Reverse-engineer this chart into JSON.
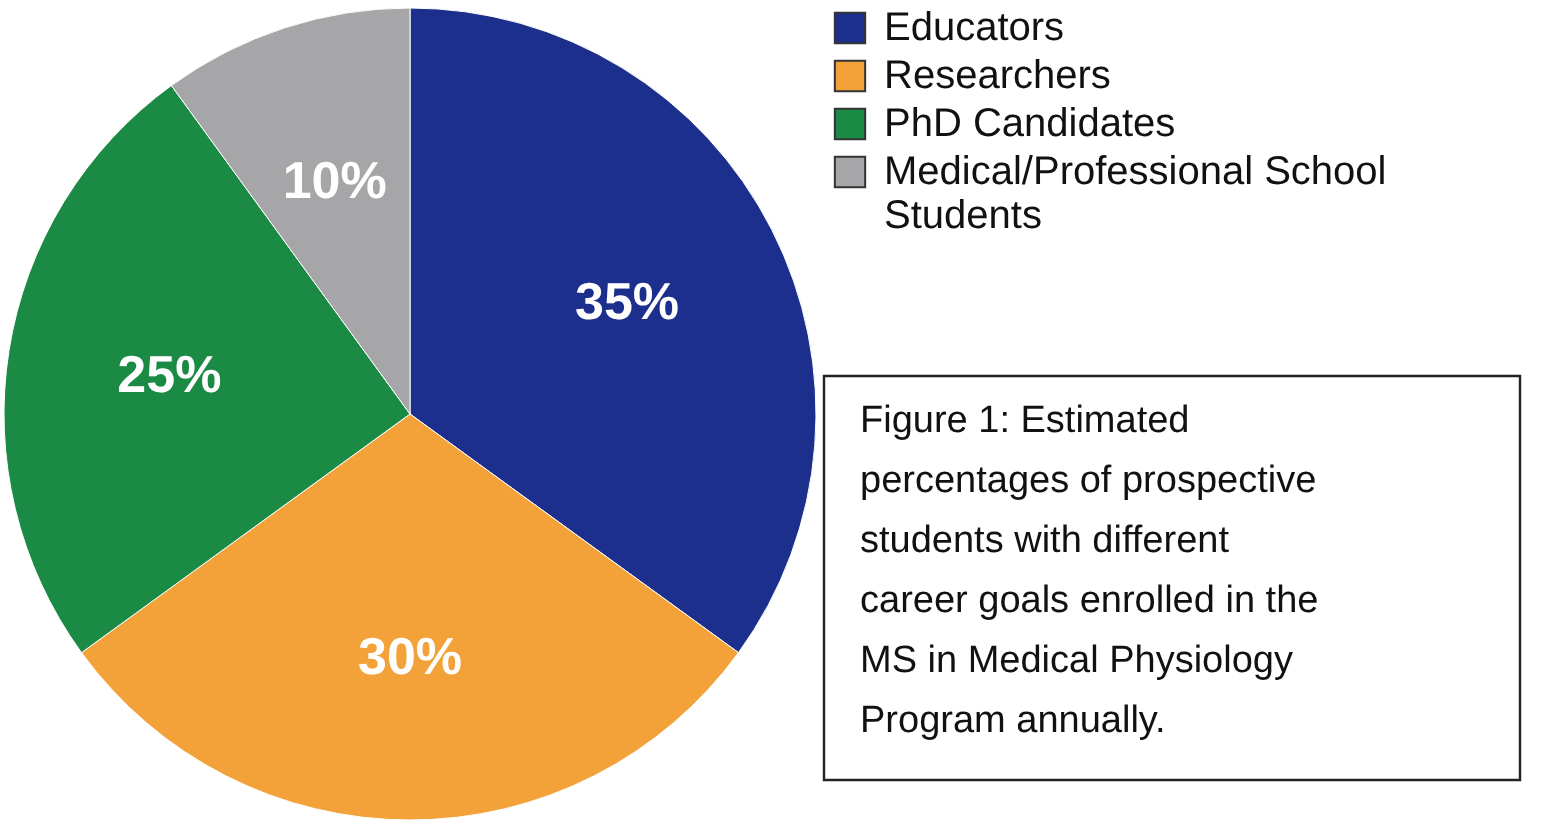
{
  "chart_data": {
    "type": "pie",
    "categories": [
      "Educators",
      "Researchers",
      "PhD Candidates",
      "Medical/Professional School Students"
    ],
    "values": [
      35,
      30,
      25,
      10
    ],
    "colors": [
      "#1c2f8c",
      "#f3a23a",
      "#1a8a45",
      "#a6a6a8"
    ],
    "value_labels": [
      "35%",
      "30%",
      "25%",
      "10%"
    ],
    "legend": "top right",
    "annotations": [
      "Figure 1: Estimated percentages of prospective students with different career goals enrolled in the MS in Medical Physiology Program annually."
    ]
  }
}
